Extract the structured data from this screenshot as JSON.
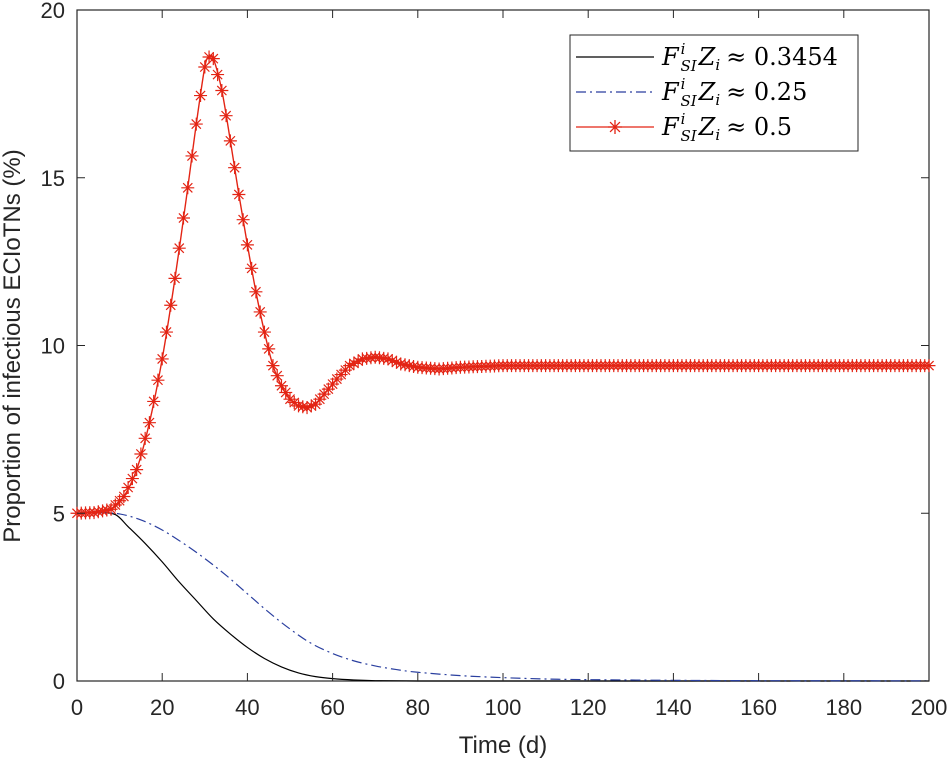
{
  "chart_data": {
    "type": "line",
    "xlabel": "Time (d)",
    "ylabel": "Proportion of infectious ECIoTNs (%)",
    "xlim": [
      0,
      200
    ],
    "ylim": [
      0,
      20
    ],
    "xticks": [
      "0",
      "20",
      "40",
      "60",
      "80",
      "100",
      "120",
      "140",
      "160",
      "180",
      "200"
    ],
    "yticks": [
      "0",
      "5",
      "10",
      "15",
      "20"
    ],
    "grid": false,
    "legend_position": "top-right",
    "series": [
      {
        "name": "F_{SI}^{i} Z_i ≈ 0.3454",
        "legend_parts": {
          "base": "F",
          "sup": "i",
          "sub": "SI",
          "z": "Z",
          "zsub": "i",
          "rest": "≈ 0.3454"
        },
        "color": "#000000",
        "style": "solid",
        "marker": "none",
        "points": [
          [
            0,
            5
          ],
          [
            5,
            5.02
          ],
          [
            9,
            4.96
          ],
          [
            12,
            4.6
          ],
          [
            16,
            4.1
          ],
          [
            20,
            3.55
          ],
          [
            24,
            2.95
          ],
          [
            28,
            2.4
          ],
          [
            32,
            1.85
          ],
          [
            36,
            1.4
          ],
          [
            40,
            1.0
          ],
          [
            44,
            0.67
          ],
          [
            48,
            0.42
          ],
          [
            52,
            0.24
          ],
          [
            56,
            0.13
          ],
          [
            60,
            0.07
          ],
          [
            65,
            0.03
          ],
          [
            70,
            0.01
          ],
          [
            80,
            0
          ],
          [
            100,
            0
          ],
          [
            200,
            0
          ]
        ]
      },
      {
        "name": "F_{SI}^{i} Z_i ≈ 0.25",
        "legend_parts": {
          "base": "F",
          "sup": "i",
          "sub": "SI",
          "z": "Z",
          "zsub": "i",
          "rest": "≈ 0.25"
        },
        "color": "#2a3f9f",
        "style": "dashdot",
        "marker": "none",
        "points": [
          [
            0,
            5
          ],
          [
            5,
            5.02
          ],
          [
            10,
            4.98
          ],
          [
            15,
            4.8
          ],
          [
            20,
            4.5
          ],
          [
            25,
            4.1
          ],
          [
            30,
            3.65
          ],
          [
            35,
            3.15
          ],
          [
            40,
            2.6
          ],
          [
            45,
            2.05
          ],
          [
            50,
            1.55
          ],
          [
            55,
            1.12
          ],
          [
            60,
            0.82
          ],
          [
            65,
            0.6
          ],
          [
            70,
            0.45
          ],
          [
            75,
            0.34
          ],
          [
            80,
            0.26
          ],
          [
            90,
            0.16
          ],
          [
            100,
            0.1
          ],
          [
            110,
            0.06
          ],
          [
            120,
            0.04
          ],
          [
            140,
            0.02
          ],
          [
            160,
            0.01
          ],
          [
            200,
            0.005
          ]
        ]
      },
      {
        "name": "F_{SI}^{i} Z_i ≈ 0.5",
        "legend_parts": {
          "base": "F",
          "sup": "i",
          "sub": "SI",
          "z": "Z",
          "zsub": "i",
          "rest": "≈ 0.5"
        },
        "color": "#e32414",
        "style": "solid",
        "marker": "star",
        "points": [
          [
            0,
            5
          ],
          [
            4,
            5.02
          ],
          [
            8,
            5.12
          ],
          [
            11,
            5.5
          ],
          [
            14,
            6.3
          ],
          [
            17,
            7.7
          ],
          [
            20,
            9.6
          ],
          [
            23,
            12.0
          ],
          [
            26,
            14.7
          ],
          [
            28,
            16.6
          ],
          [
            30,
            18.3
          ],
          [
            31,
            18.6
          ],
          [
            32,
            18.55
          ],
          [
            34,
            17.6
          ],
          [
            36,
            16.1
          ],
          [
            38,
            14.5
          ],
          [
            40,
            13.0
          ],
          [
            42,
            11.6
          ],
          [
            44,
            10.4
          ],
          [
            46,
            9.4
          ],
          [
            48,
            8.8
          ],
          [
            50,
            8.4
          ],
          [
            52,
            8.2
          ],
          [
            54,
            8.15
          ],
          [
            56,
            8.25
          ],
          [
            58,
            8.55
          ],
          [
            61,
            9.0
          ],
          [
            64,
            9.4
          ],
          [
            67,
            9.6
          ],
          [
            70,
            9.65
          ],
          [
            73,
            9.6
          ],
          [
            76,
            9.45
          ],
          [
            80,
            9.35
          ],
          [
            85,
            9.3
          ],
          [
            90,
            9.35
          ],
          [
            100,
            9.4
          ],
          [
            120,
            9.4
          ],
          [
            150,
            9.4
          ],
          [
            200,
            9.4
          ]
        ]
      }
    ]
  }
}
